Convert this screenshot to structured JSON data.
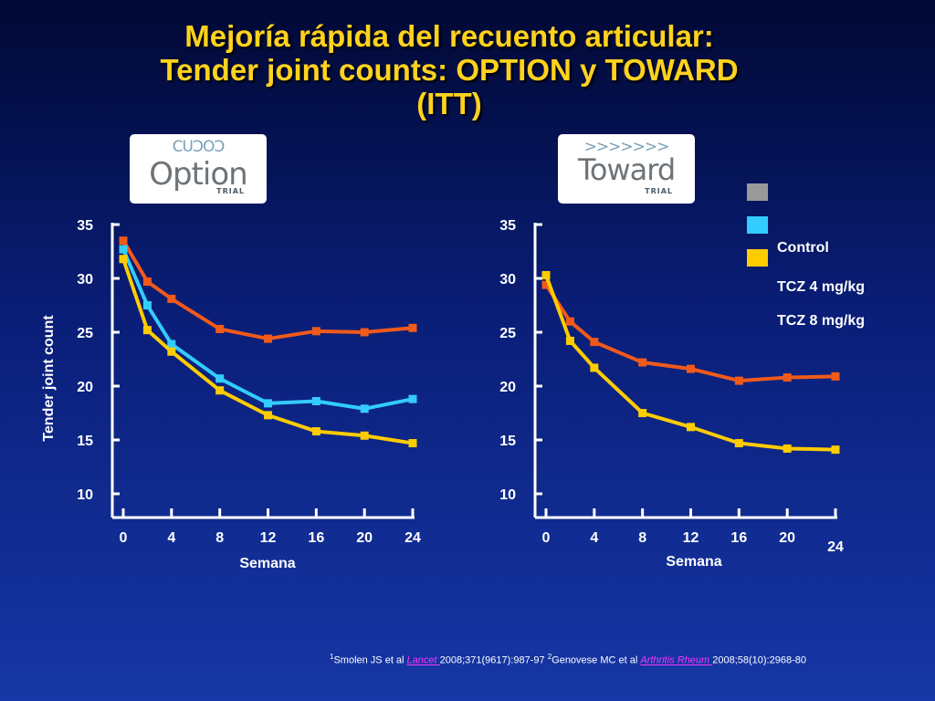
{
  "title": {
    "line1": "Mejoría rápida del recuento articular:",
    "line2": "Tender joint counts: OPTION y TOWARD",
    "line3": "(ITT)"
  },
  "logos": {
    "option": {
      "mark": "CUƆOƆ",
      "name": "Option",
      "trial": "TRIAL"
    },
    "toward": {
      "mark": ">>>>>>>",
      "name": "Toward",
      "trial": "TRIAL"
    }
  },
  "legend": {
    "items": [
      {
        "label": "Control",
        "color": "#999999"
      },
      {
        "label": "TCZ 4 mg/kg",
        "color": "#33ccff"
      },
      {
        "label": "TCZ 8 mg/kg",
        "color": "#ffcc00"
      }
    ]
  },
  "colors": {
    "control": "#f05a1a",
    "tcz4": "#33ccff",
    "tcz8": "#ffcc00"
  },
  "chart_data": [
    {
      "type": "line",
      "name": "OPTION",
      "xlabel": "Semana",
      "ylabel": "Tender joint count",
      "ylim": [
        10,
        35
      ],
      "yticks": [
        10,
        15,
        20,
        25,
        30,
        35
      ],
      "xticks": [
        0,
        4,
        8,
        12,
        16,
        20,
        24
      ],
      "series": [
        {
          "name": "Control",
          "color": "#f05a1a",
          "x": [
            0,
            2,
            4,
            8,
            12,
            16,
            20,
            24
          ],
          "values": [
            33.5,
            29.7,
            28.1,
            25.3,
            24.4,
            25.1,
            25.0,
            25.4
          ]
        },
        {
          "name": "TCZ 4 mg/kg",
          "color": "#33ccff",
          "x": [
            0,
            2,
            4,
            8,
            12,
            16,
            20,
            24
          ],
          "values": [
            32.7,
            27.5,
            23.9,
            20.7,
            18.4,
            18.6,
            17.9,
            18.8
          ]
        },
        {
          "name": "TCZ 8 mg/kg",
          "color": "#ffcc00",
          "x": [
            0,
            2,
            4,
            8,
            12,
            16,
            20,
            24
          ],
          "values": [
            31.8,
            25.2,
            23.2,
            19.6,
            17.3,
            15.8,
            15.4,
            14.7
          ]
        }
      ]
    },
    {
      "type": "line",
      "name": "TOWARD",
      "xlabel": "Semana",
      "ylabel": "",
      "ylim": [
        10,
        35
      ],
      "yticks": [
        10,
        15,
        20,
        25,
        30,
        35
      ],
      "xticks": [
        0,
        4,
        8,
        12,
        16,
        20,
        24
      ],
      "series": [
        {
          "name": "Control",
          "color": "#f05a1a",
          "x": [
            0,
            2,
            4,
            8,
            12,
            16,
            20,
            24
          ],
          "values": [
            29.4,
            26.0,
            24.1,
            22.2,
            21.6,
            20.5,
            20.8,
            20.9
          ]
        },
        {
          "name": "TCZ 8 mg/kg",
          "color": "#ffcc00",
          "x": [
            0,
            2,
            4,
            8,
            12,
            16,
            20,
            24
          ],
          "values": [
            30.3,
            24.2,
            21.7,
            17.5,
            16.2,
            14.7,
            14.2,
            14.1
          ]
        }
      ]
    }
  ],
  "reference": {
    "sup1": "1",
    "part1": "Smolen JS et al ",
    "journal1": "Lancet ",
    "part2": "2008;371(9617):987-97  ",
    "sup2": "2",
    "part3": "Genovese MC et al ",
    "journal2": "Arthritis Rheum ",
    "part4": "2008;58(10):2968-80"
  }
}
